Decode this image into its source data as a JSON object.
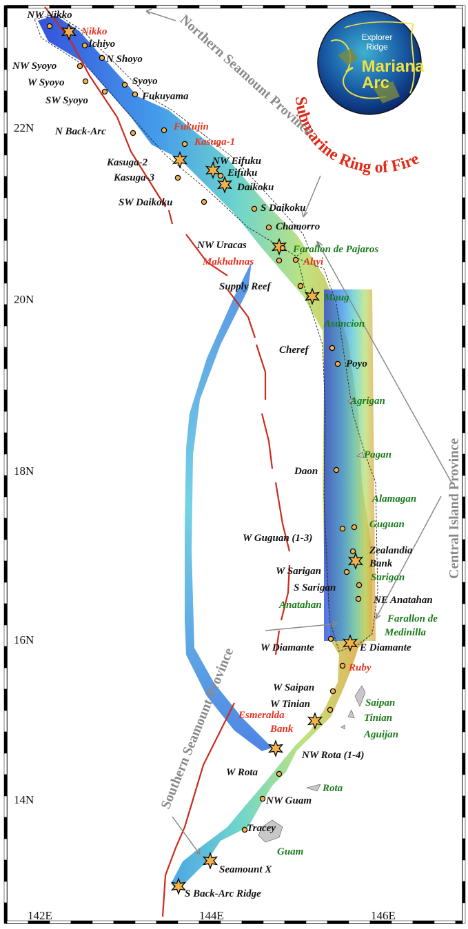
{
  "axes": {
    "lat_labels": [
      {
        "text": "22N",
        "lat": 22
      },
      {
        "text": "20N",
        "lat": 20
      },
      {
        "text": "18N",
        "lat": 18
      },
      {
        "text": "16N",
        "lat": 16
      },
      {
        "text": "14N",
        "lat": 14
      }
    ],
    "lon_labels": [
      {
        "text": "142E",
        "lon": 142
      },
      {
        "text": "144E",
        "lon": 144
      },
      {
        "text": "146E",
        "lon": 146
      }
    ]
  },
  "provinces": {
    "northern": "Northern Seamount Province",
    "central": "Central Island Province",
    "southern": "Southern Seamount Province"
  },
  "inset": {
    "title": "Submarine Ring of Fire",
    "explorer_ridge": [
      "Explorer",
      "Ridge"
    ],
    "mariana_arc": [
      "Mariana",
      "Arc"
    ]
  },
  "features": [
    {
      "name": "NW Nikko",
      "color": "black",
      "marker": "dot"
    },
    {
      "name": "Nikko",
      "color": "red",
      "marker": "star"
    },
    {
      "name": "Ichiyo",
      "color": "black",
      "marker": "dot"
    },
    {
      "name": "N Shoyo",
      "color": "black",
      "marker": "dot"
    },
    {
      "name": "NW Syoyo",
      "color": "black",
      "marker": "dot"
    },
    {
      "name": "W Syoyo",
      "color": "black",
      "marker": "dot"
    },
    {
      "name": "Syoyo",
      "color": "black",
      "marker": "dot"
    },
    {
      "name": "SW Syoyo",
      "color": "black",
      "marker": "dot"
    },
    {
      "name": "Fukuyama",
      "color": "black",
      "marker": "dot"
    },
    {
      "name": "N Back-Arc",
      "color": "black",
      "marker": "dot"
    },
    {
      "name": "Fukujin",
      "color": "red",
      "marker": "dot"
    },
    {
      "name": "Kasuga-1",
      "color": "red",
      "marker": "dot"
    },
    {
      "name": "Kasuga-2",
      "color": "black",
      "marker": "star"
    },
    {
      "name": "NW Eifuku",
      "color": "black",
      "marker": "star"
    },
    {
      "name": "Eifuku",
      "color": "black",
      "marker": "dot"
    },
    {
      "name": "Kasuga-3",
      "color": "black",
      "marker": "dot"
    },
    {
      "name": "Daikoku",
      "color": "black",
      "marker": "star"
    },
    {
      "name": "SW Daikoku",
      "color": "black",
      "marker": "dot"
    },
    {
      "name": "S Daikoku",
      "color": "black",
      "marker": "dot"
    },
    {
      "name": "Chamorro",
      "color": "black",
      "marker": "dot"
    },
    {
      "name": "NW Uracas",
      "color": "black",
      "marker": "star"
    },
    {
      "name": "Farallon de Pajaros",
      "color": "green",
      "marker": "dot"
    },
    {
      "name": "Makhahnas",
      "color": "red",
      "marker": "dot"
    },
    {
      "name": "Ahyi",
      "color": "red",
      "marker": "dot"
    },
    {
      "name": "Supply Reef",
      "color": "black",
      "marker": "dot"
    },
    {
      "name": "Maug",
      "color": "green",
      "marker": "star"
    },
    {
      "name": "Asuncion",
      "color": "green",
      "marker": "none"
    },
    {
      "name": "Cheref",
      "color": "black",
      "marker": "dot"
    },
    {
      "name": "Poyo",
      "color": "black",
      "marker": "dot"
    },
    {
      "name": "Agrigan",
      "color": "green",
      "marker": "none"
    },
    {
      "name": "Pagan",
      "color": "green",
      "marker": "none"
    },
    {
      "name": "Daon",
      "color": "black",
      "marker": "dot"
    },
    {
      "name": "Alamagan",
      "color": "green",
      "marker": "none"
    },
    {
      "name": "Guguan",
      "color": "green",
      "marker": "dot"
    },
    {
      "name": "W Guguan (1-3)",
      "color": "black",
      "marker": "dot"
    },
    {
      "name": "Zealandia",
      "color": "black",
      "marker": "dot"
    },
    {
      "name": "Bank",
      "color": "black",
      "marker": "star"
    },
    {
      "name": "W Sarigan",
      "color": "black",
      "marker": "dot"
    },
    {
      "name": "Sarigan",
      "color": "green",
      "marker": "none"
    },
    {
      "name": "S Sarigan",
      "color": "black",
      "marker": "dot"
    },
    {
      "name": "NE Anatahan",
      "color": "black",
      "marker": "dot"
    },
    {
      "name": "Anatahan",
      "color": "green",
      "marker": "none"
    },
    {
      "name": "Farallon de",
      "color": "green",
      "marker": "none"
    },
    {
      "name": "Medinilla",
      "color": "green",
      "marker": "none"
    },
    {
      "name": "W Diamante",
      "color": "black",
      "marker": "dot"
    },
    {
      "name": "E Diamante",
      "color": "black",
      "marker": "star"
    },
    {
      "name": "Ruby",
      "color": "red",
      "marker": "dot"
    },
    {
      "name": "W Saipan",
      "color": "black",
      "marker": "dot"
    },
    {
      "name": "Saipan",
      "color": "green",
      "marker": "none"
    },
    {
      "name": "W Tinian",
      "color": "black",
      "marker": "dot"
    },
    {
      "name": "Tinian",
      "color": "green",
      "marker": "none"
    },
    {
      "name": "Esmeralda",
      "color": "red",
      "marker": "star"
    },
    {
      "name": "Bank",
      "color": "red",
      "marker": "none"
    },
    {
      "name": "Aguijan",
      "color": "green",
      "marker": "none"
    },
    {
      "name": "NW Rota (1-4)",
      "color": "black",
      "marker": "star"
    },
    {
      "name": "W Rota",
      "color": "black",
      "marker": "dot"
    },
    {
      "name": "Rota",
      "color": "green",
      "marker": "none"
    },
    {
      "name": "NW Guam",
      "color": "black",
      "marker": "dot"
    },
    {
      "name": "Tracey",
      "color": "black",
      "marker": "dot"
    },
    {
      "name": "Guam",
      "color": "green",
      "marker": "none"
    },
    {
      "name": "Seamount X",
      "color": "black",
      "marker": "star"
    },
    {
      "name": "S Back-Arc Ridge",
      "color": "black",
      "marker": "star"
    }
  ]
}
